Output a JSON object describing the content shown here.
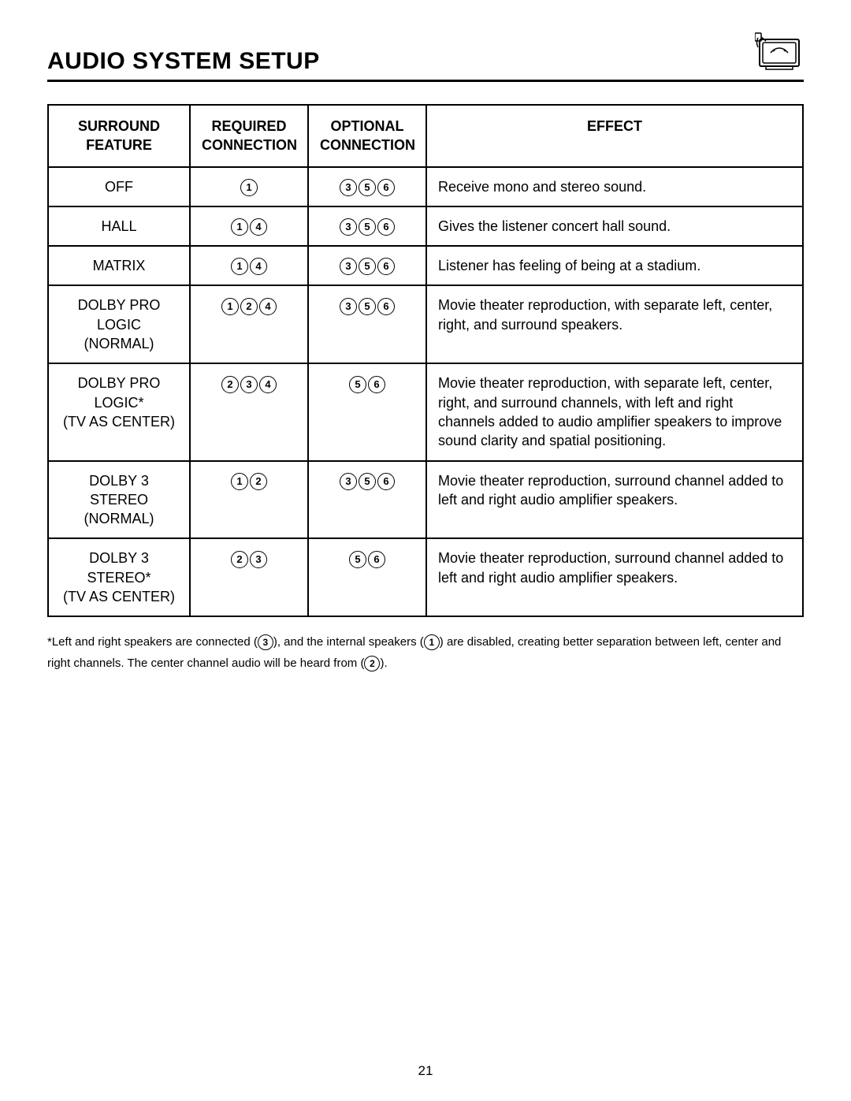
{
  "title": "AUDIO SYSTEM SETUP",
  "page_number": "21",
  "table": {
    "headers": {
      "feature": "SURROUND FEATURE",
      "required": "REQUIRED CONNECTION",
      "optional": "OPTIONAL CONNECTION",
      "effect": "EFFECT"
    },
    "rows": [
      {
        "feature": "OFF",
        "required": [
          "1"
        ],
        "optional": [
          "3",
          "5",
          "6"
        ],
        "effect": "Receive mono and stereo sound."
      },
      {
        "feature": "HALL",
        "required": [
          "1",
          "4"
        ],
        "optional": [
          "3",
          "5",
          "6"
        ],
        "effect": "Gives the listener concert hall sound."
      },
      {
        "feature": "MATRIX",
        "required": [
          "1",
          "4"
        ],
        "optional": [
          "3",
          "5",
          "6"
        ],
        "effect": "Listener has feeling of being at a stadium."
      },
      {
        "feature": "DOLBY PRO LOGIC (NORMAL)",
        "required": [
          "1",
          "2",
          "4"
        ],
        "optional": [
          "3",
          "5",
          "6"
        ],
        "effect": "Movie theater reproduction, with separate left, center, right, and surround speakers."
      },
      {
        "feature": "DOLBY PRO LOGIC* (TV AS CENTER)",
        "required": [
          "2",
          "3",
          "4"
        ],
        "optional": [
          "5",
          "6"
        ],
        "effect": "Movie theater reproduction, with separate left, center, right, and surround channels, with left and right channels added to audio amplifier speakers to improve sound clarity and spatial positioning."
      },
      {
        "feature": "DOLBY 3 STEREO (NORMAL)",
        "required": [
          "1",
          "2"
        ],
        "optional": [
          "3",
          "5",
          "6"
        ],
        "effect": "Movie theater reproduction, surround channel added to left and right audio amplifier speakers."
      },
      {
        "feature": "DOLBY 3 STEREO* (TV AS CENTER)",
        "required": [
          "2",
          "3"
        ],
        "optional": [
          "5",
          "6"
        ],
        "effect": "Movie theater reproduction, surround channel added to left and right audio amplifier speakers."
      }
    ]
  },
  "footnote": {
    "parts": [
      "*Left and right speakers are connected (",
      "3",
      "), and the internal speakers (",
      "1",
      ") are disabled, creating better separation between left, center and right channels. The center channel audio will be heard from (",
      "2",
      ")."
    ]
  }
}
